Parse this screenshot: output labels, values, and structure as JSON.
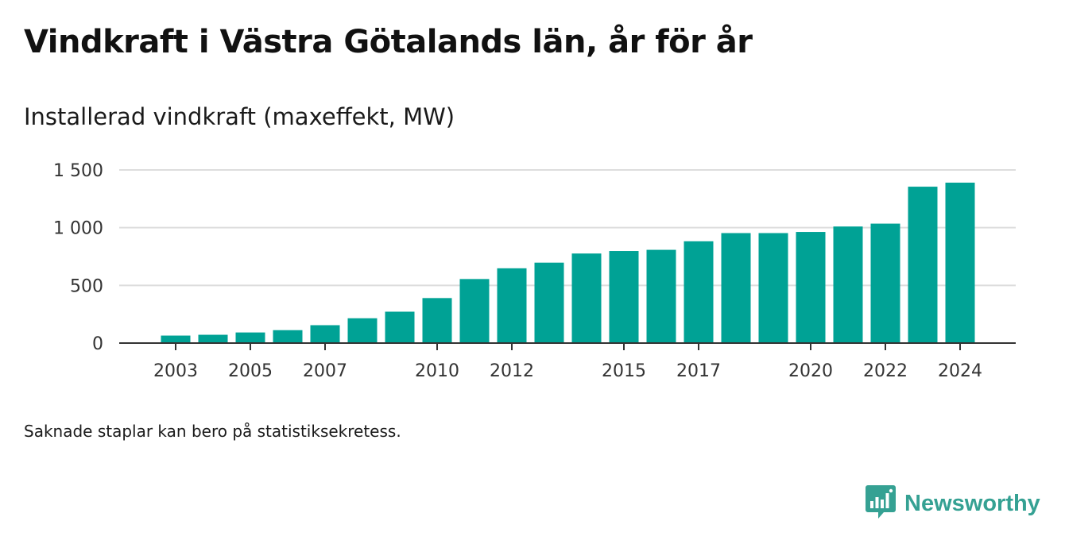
{
  "title": "Vindkraft i Västra Götalands län, år för år",
  "subtitle": "Installerad vindkraft (maxeffekt, MW)",
  "footnote": "Saknade staplar kan bero på statistiksekretess.",
  "brand": {
    "name": "Newsworthy",
    "icon": "newsworthy-logo-icon",
    "color": "#35a193"
  },
  "colors": {
    "bar": "#00a295",
    "grid": "#dddddd",
    "axis": "#333333"
  },
  "chart_data": {
    "type": "bar",
    "categories": [
      "2003",
      "2004",
      "2005",
      "2006",
      "2007",
      "2008",
      "2009",
      "2010",
      "2011",
      "2012",
      "2013",
      "2014",
      "2015",
      "2016",
      "2017",
      "2018",
      "2019",
      "2020",
      "2021",
      "2022",
      "2023",
      "2024"
    ],
    "values": [
      65,
      72,
      92,
      112,
      155,
      215,
      272,
      390,
      555,
      648,
      697,
      776,
      798,
      808,
      882,
      953,
      953,
      963,
      1010,
      1035,
      1355,
      1390
    ],
    "x_tick_labels": [
      "2003",
      "2005",
      "2007",
      "2010",
      "2012",
      "2015",
      "2017",
      "2020",
      "2022",
      "2024"
    ],
    "y_ticks": [
      0,
      500,
      1000,
      1500
    ],
    "y_tick_labels": [
      "0",
      "500",
      "1 000",
      "1 500"
    ],
    "ylim": [
      0,
      1500
    ],
    "grid": true,
    "legend": "none",
    "title": "Vindkraft i Västra Götalands län, år för år",
    "ylabel": "Installerad vindkraft (maxeffekt, MW)",
    "xlabel": ""
  }
}
